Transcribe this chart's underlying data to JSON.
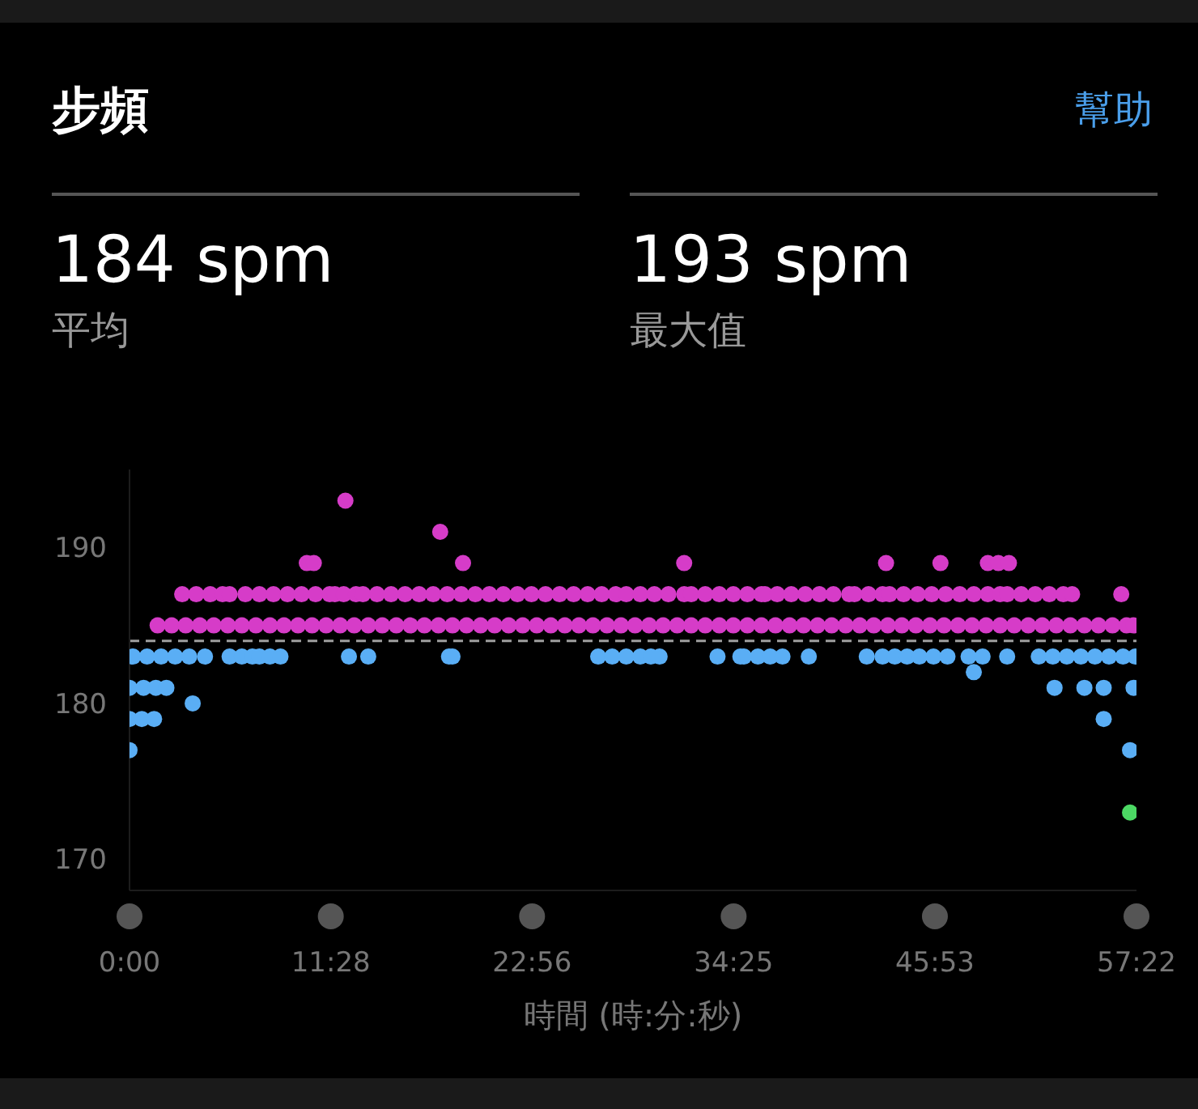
{
  "chart_data": {
    "type": "scatter",
    "title": "步頻",
    "xlabel": "時間 (時:分:秒)",
    "annotations": [
      "幫助",
      "184 spm",
      "平均",
      "193 spm",
      "最大值"
    ],
    "marker": "circle",
    "xlim": [
      0,
      57.367
    ],
    "xticks": [
      {
        "value": 0,
        "label": "0:00"
      },
      {
        "value": 11.467,
        "label": "11:28"
      },
      {
        "value": 22.933,
        "label": "22:56"
      },
      {
        "value": 34.417,
        "label": "34:25"
      },
      {
        "value": 45.883,
        "label": "45:53"
      },
      {
        "value": 57.367,
        "label": "57:22"
      }
    ],
    "ylim": [
      168,
      195
    ],
    "yticks": [
      170,
      180,
      190
    ],
    "ref_lines": [
      {
        "axis": "y",
        "value": 184,
        "color": "#9e9e9e",
        "line_style": "dashed"
      }
    ],
    "series": [
      {
        "color": "#d63cc8",
        "x": [
          1.6,
          2.4,
          3.2,
          4.0,
          4.8,
          5.6,
          6.4,
          7.2,
          8.0,
          8.8,
          9.6,
          10.4,
          11.2,
          12.0,
          12.8,
          13.6,
          14.4,
          15.2,
          16.0,
          16.8,
          17.6,
          18.4,
          19.2,
          20.0,
          20.8,
          21.6,
          22.4,
          23.2,
          24.0,
          24.8,
          25.6,
          26.4,
          27.2,
          28.0,
          28.8,
          29.6,
          30.4,
          31.2,
          32.0,
          32.8,
          33.6,
          34.4,
          35.2,
          36.0,
          36.8,
          37.6,
          38.4,
          39.2,
          40.0,
          40.8,
          41.6,
          42.4,
          43.2,
          44.0,
          44.8,
          45.6,
          46.4,
          47.2,
          48.0,
          48.8,
          49.6,
          50.4,
          51.2,
          52.0,
          52.8,
          53.6,
          54.4,
          55.2,
          56.0,
          56.8,
          57.2,
          3.0,
          3.8,
          4.6,
          5.3,
          5.7,
          6.6,
          7.4,
          8.2,
          9.0,
          9.8,
          10.6,
          11.4,
          11.7,
          12.2,
          12.9,
          13.3,
          14.1,
          14.9,
          15.7,
          16.5,
          17.3,
          18.1,
          18.9,
          19.7,
          20.5,
          21.3,
          22.1,
          22.9,
          23.7,
          24.5,
          25.3,
          26.1,
          26.9,
          27.7,
          28.3,
          29.1,
          29.9,
          30.7,
          31.6,
          32.0,
          32.8,
          33.6,
          34.4,
          35.2,
          36.0,
          36.2,
          36.9,
          37.7,
          38.5,
          39.3,
          40.1,
          41.0,
          41.3,
          42.1,
          42.9,
          43.3,
          44.1,
          44.9,
          45.7,
          46.5,
          47.3,
          48.1,
          48.9,
          49.6,
          50.0,
          50.8,
          51.6,
          52.4,
          53.2,
          53.7,
          56.5,
          10.1,
          10.5,
          19.0,
          31.6,
          43.1,
          46.2,
          48.9,
          49.5,
          50.1,
          17.7,
          12.3
        ],
        "values": [
          185,
          185,
          185,
          185,
          185,
          185,
          185,
          185,
          185,
          185,
          185,
          185,
          185,
          185,
          185,
          185,
          185,
          185,
          185,
          185,
          185,
          185,
          185,
          185,
          185,
          185,
          185,
          185,
          185,
          185,
          185,
          185,
          185,
          185,
          185,
          185,
          185,
          185,
          185,
          185,
          185,
          185,
          185,
          185,
          185,
          185,
          185,
          185,
          185,
          185,
          185,
          185,
          185,
          185,
          185,
          185,
          185,
          185,
          185,
          185,
          185,
          185,
          185,
          185,
          185,
          185,
          185,
          185,
          185,
          185,
          185,
          187,
          187,
          187,
          187,
          187,
          187,
          187,
          187,
          187,
          187,
          187,
          187,
          187,
          187,
          187,
          187,
          187,
          187,
          187,
          187,
          187,
          187,
          187,
          187,
          187,
          187,
          187,
          187,
          187,
          187,
          187,
          187,
          187,
          187,
          187,
          187,
          187,
          187,
          187,
          187,
          187,
          187,
          187,
          187,
          187,
          187,
          187,
          187,
          187,
          187,
          187,
          187,
          187,
          187,
          187,
          187,
          187,
          187,
          187,
          187,
          187,
          187,
          187,
          187,
          187,
          187,
          187,
          187,
          187,
          187,
          187,
          189,
          189,
          189,
          189,
          189,
          189,
          189,
          189,
          189,
          191,
          193
        ]
      },
      {
        "color": "#5aaef5",
        "x": [
          0.2,
          1.0,
          1.8,
          2.6,
          3.4,
          4.3,
          5.7,
          6.4,
          7.0,
          7.4,
          8.0,
          8.6,
          12.5,
          13.6,
          18.2,
          18.4,
          26.7,
          27.5,
          28.3,
          29.1,
          29.7,
          30.2,
          33.5,
          34.8,
          35.0,
          35.8,
          36.5,
          37.2,
          38.7,
          42.0,
          42.9,
          43.6,
          44.3,
          45.0,
          45.8,
          46.6,
          47.8,
          48.6,
          50.0,
          51.8,
          52.6,
          53.4,
          54.2,
          55.0,
          55.8,
          56.6,
          57.3,
          48.1,
          0.0,
          0.8,
          1.5,
          2.1,
          52.7,
          54.4,
          55.5,
          57.2,
          3.6,
          0.0,
          0.7,
          1.4,
          55.5,
          0.0,
          57.0
        ],
        "values": [
          183,
          183,
          183,
          183,
          183,
          183,
          183,
          183,
          183,
          183,
          183,
          183,
          183,
          183,
          183,
          183,
          183,
          183,
          183,
          183,
          183,
          183,
          183,
          183,
          183,
          183,
          183,
          183,
          183,
          183,
          183,
          183,
          183,
          183,
          183,
          183,
          183,
          183,
          183,
          183,
          183,
          183,
          183,
          183,
          183,
          183,
          183,
          182,
          181,
          181,
          181,
          181,
          181,
          181,
          181,
          181,
          180,
          179,
          179,
          179,
          179,
          177,
          177
        ]
      },
      {
        "color": "#4cd964",
        "x": [
          57.0
        ],
        "values": [
          173
        ]
      }
    ]
  }
}
